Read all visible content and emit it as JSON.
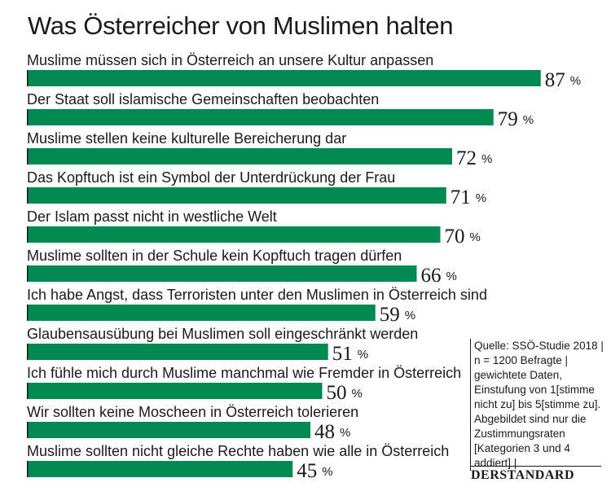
{
  "chart_data": {
    "type": "bar",
    "orientation": "horizontal",
    "title": "Was Österreicher von Muslimen halten",
    "categories": [
      "Muslime müssen sich in Österreich an unsere Kultur anpassen",
      "Der Staat soll islamische Gemeinschaften beobachten",
      "Muslime stellen keine kulturelle Bereicherung dar",
      "Das Kopftuch ist ein Symbol der Unterdrückung der Frau",
      "Der Islam passt nicht in westliche Welt",
      "Muslime sollten in der Schule kein Kopftuch tragen dürfen",
      "Ich habe Angst, dass Terroristen unter den Muslimen in Österreich  sind",
      "Glaubensausübung bei Muslimen soll eingeschränkt werden",
      "Ich fühle mich durch Muslime manchmal wie Fremder in Österreich",
      "Wir sollten keine Moscheen in Österreich tolerieren",
      "Muslime sollten nicht gleiche Rechte haben wie alle in Österreich"
    ],
    "values": [
      87,
      79,
      72,
      71,
      70,
      66,
      59,
      51,
      50,
      48,
      45
    ],
    "value_unit": "%",
    "xlim": [
      0,
      100
    ],
    "bar_color": "#008a52",
    "grid": false,
    "legend": false
  },
  "source_note": [
    "Quelle: SSÖ-Studie 2018 |",
    "n = 1200 Befragte |",
    "gewichtete Daten,",
    "Einstufung von 1[stimme",
    "nicht zu] bis 5[stimme zu].",
    "Abgebildet sind nur die",
    "Zustimmungsraten",
    "[Kategorien 3 und 4",
    "addiert] |"
  ],
  "brand": "DERSTANDARD"
}
